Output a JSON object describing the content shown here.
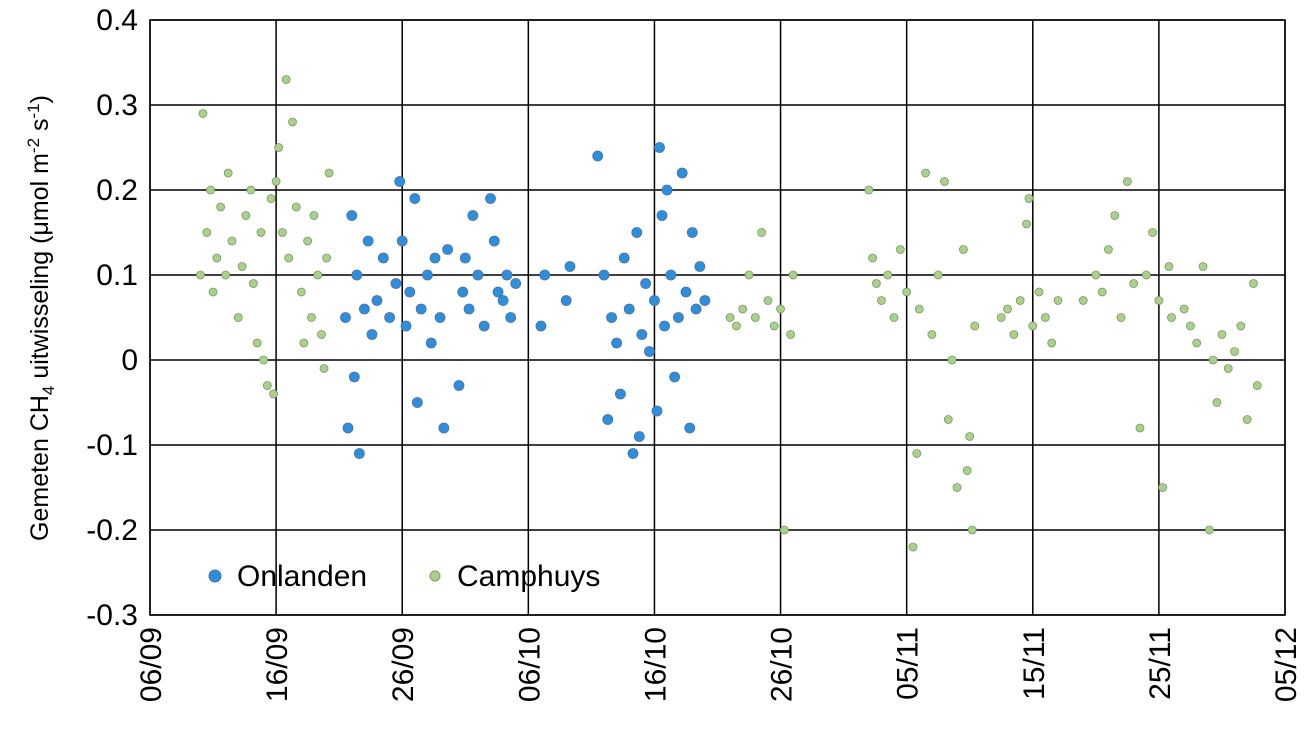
{
  "chart_data": {
    "type": "scatter",
    "ylabel": [
      "Gemeten CH",
      "4",
      " uitwisseling (μmol m",
      "-2",
      " s",
      "-1",
      ")"
    ],
    "xlim": [
      0,
      90
    ],
    "xticks": [
      {
        "value": 0,
        "label": "06/09"
      },
      {
        "value": 10,
        "label": "16/09"
      },
      {
        "value": 20,
        "label": "26/09"
      },
      {
        "value": 30,
        "label": "06/10"
      },
      {
        "value": 40,
        "label": "16/10"
      },
      {
        "value": 50,
        "label": "26/10"
      },
      {
        "value": 60,
        "label": "05/11"
      },
      {
        "value": 70,
        "label": "15/11"
      },
      {
        "value": 80,
        "label": "25/11"
      },
      {
        "value": 90,
        "label": "05/12"
      }
    ],
    "ylim": [
      -0.3,
      0.4
    ],
    "yticks": [
      -0.3,
      -0.2,
      -0.1,
      0,
      0.1,
      0.2,
      0.3,
      0.4
    ],
    "grid": true,
    "legend": "lower-left",
    "series": [
      {
        "name": "Onlanden",
        "color": "#2e8fd8",
        "x": [
          15.5,
          15.7,
          16,
          16.2,
          16.4,
          16.6,
          17,
          17.3,
          17.6,
          18,
          18.5,
          19,
          19.5,
          19.8,
          20,
          20.3,
          20.6,
          21,
          21.2,
          21.5,
          22,
          22.3,
          22.6,
          23,
          23.3,
          23.6,
          24.5,
          24.8,
          25,
          25.3,
          25.6,
          26,
          26.5,
          27,
          27.3,
          27.6,
          28,
          28.3,
          28.6,
          29,
          31,
          31.3,
          33,
          33.3,
          35.5,
          36,
          36.3,
          36.6,
          37,
          37.3,
          37.6,
          38,
          38.3,
          38.6,
          38.8,
          39,
          39.3,
          39.6,
          40,
          40.2,
          40.4,
          40.6,
          40.8,
          41,
          41.3,
          41.6,
          41.9,
          42.2,
          42.5,
          42.8,
          43,
          43.3,
          43.6,
          44
        ],
        "values": [
          0.05,
          -0.08,
          0.17,
          -0.02,
          0.1,
          -0.11,
          0.06,
          0.14,
          0.03,
          0.07,
          0.12,
          0.05,
          0.09,
          0.21,
          0.14,
          0.04,
          0.08,
          0.19,
          -0.05,
          0.06,
          0.1,
          0.02,
          0.12,
          0.05,
          -0.08,
          0.13,
          -0.03,
          0.08,
          0.12,
          0.06,
          0.17,
          0.1,
          0.04,
          0.19,
          0.14,
          0.08,
          0.07,
          0.1,
          0.05,
          0.09,
          0.04,
          0.1,
          0.07,
          0.11,
          0.24,
          0.1,
          -0.07,
          0.05,
          0.02,
          -0.04,
          0.12,
          0.06,
          -0.11,
          0.15,
          -0.09,
          0.03,
          0.09,
          0.01,
          0.07,
          -0.06,
          0.25,
          0.17,
          0.04,
          0.2,
          0.1,
          -0.02,
          0.05,
          0.22,
          0.08,
          -0.08,
          0.15,
          0.06,
          0.11,
          0.07
        ]
      },
      {
        "name": "Camphuys",
        "color": "#a9d18e",
        "x": [
          4,
          4.2,
          4.5,
          4.8,
          5,
          5.3,
          5.6,
          6,
          6.2,
          6.5,
          7,
          7.3,
          7.6,
          8,
          8.2,
          8.5,
          8.8,
          9,
          9.3,
          9.6,
          10,
          10.2,
          10.5,
          10.8,
          11,
          11.3,
          11.6,
          12,
          12.2,
          12.5,
          12.8,
          13,
          13.3,
          13.6,
          14,
          14.2,
          9.8,
          13.8,
          46,
          46.5,
          47,
          47.5,
          48,
          48.5,
          49,
          49.5,
          50,
          50.3,
          50.8,
          51,
          57,
          57.3,
          57.6,
          58,
          58.5,
          59,
          59.5,
          60,
          60.5,
          60.8,
          61,
          61.5,
          62,
          62.5,
          63,
          63.3,
          63.6,
          64,
          64.5,
          64.8,
          65,
          65.2,
          65.4,
          67.5,
          68,
          68.5,
          69,
          69.5,
          69.7,
          70,
          70.5,
          71,
          71.5,
          72,
          74,
          75,
          75.5,
          76,
          76.5,
          77,
          77.5,
          78,
          78.5,
          79,
          79.5,
          80,
          80.3,
          80.8,
          81,
          82,
          82.5,
          83,
          83.5,
          84,
          84.3,
          84.6,
          85,
          85.5,
          86,
          86.5,
          87,
          87.5,
          87.8
        ],
        "values": [
          0.1,
          0.29,
          0.15,
          0.2,
          0.08,
          0.12,
          0.18,
          0.1,
          0.22,
          0.14,
          0.05,
          0.11,
          0.17,
          0.2,
          0.09,
          0.02,
          0.15,
          0.0,
          -0.03,
          0.19,
          0.21,
          0.25,
          0.15,
          0.33,
          0.12,
          0.28,
          0.18,
          0.08,
          0.02,
          0.14,
          0.05,
          0.17,
          0.1,
          0.03,
          0.12,
          0.22,
          -0.04,
          -0.01,
          0.05,
          0.04,
          0.06,
          0.1,
          0.05,
          0.15,
          0.07,
          0.04,
          0.06,
          -0.2,
          0.03,
          0.1,
          0.2,
          0.12,
          0.09,
          0.07,
          0.1,
          0.05,
          0.13,
          0.08,
          -0.22,
          -0.11,
          0.06,
          0.22,
          0.03,
          0.1,
          0.21,
          -0.07,
          0.0,
          -0.15,
          0.13,
          -0.13,
          -0.09,
          -0.2,
          0.04,
          0.05,
          0.06,
          0.03,
          0.07,
          0.16,
          0.19,
          0.04,
          0.08,
          0.05,
          0.02,
          0.07,
          0.07,
          0.1,
          0.08,
          0.13,
          0.17,
          0.05,
          0.21,
          0.09,
          -0.08,
          0.1,
          0.15,
          0.07,
          -0.15,
          0.11,
          0.05,
          0.06,
          0.04,
          0.02,
          0.11,
          -0.2,
          0.0,
          -0.05,
          0.03,
          -0.01,
          0.01,
          0.04,
          -0.07,
          0.09,
          -0.03
        ]
      }
    ]
  }
}
